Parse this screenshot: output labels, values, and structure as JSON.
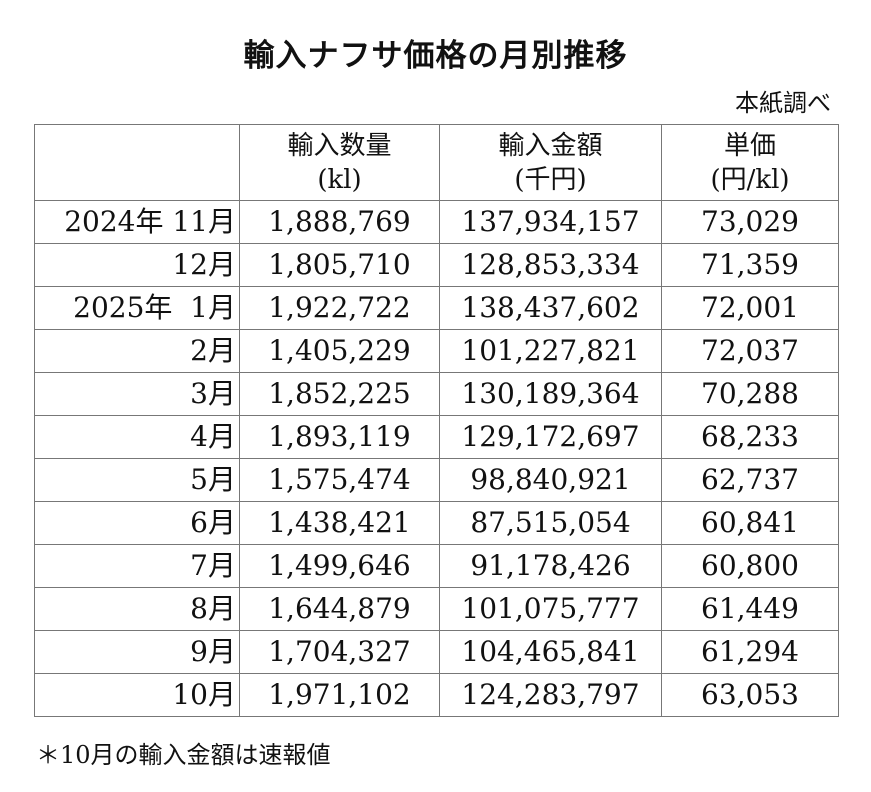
{
  "title": "輸入ナフサ価格の月別推移",
  "source": "本紙調べ",
  "table": {
    "headers": [
      {
        "line1": "",
        "line2": ""
      },
      {
        "line1": "輸入数量",
        "line2": "(kl)"
      },
      {
        "line1": "輸入金額",
        "line2": "(千円)"
      },
      {
        "line1": "単価",
        "line2": "(円/kl)"
      }
    ],
    "rows": [
      {
        "period": "2024年 11月",
        "volume": "1,888,769",
        "amount": "137,934,157",
        "unit_price": "73,029"
      },
      {
        "period": "12月",
        "volume": "1,805,710",
        "amount": "128,853,334",
        "unit_price": "71,359"
      },
      {
        "period": "2025年  1月",
        "volume": "1,922,722",
        "amount": "138,437,602",
        "unit_price": "72,001"
      },
      {
        "period": "2月",
        "volume": "1,405,229",
        "amount": "101,227,821",
        "unit_price": "72,037"
      },
      {
        "period": "3月",
        "volume": "1,852,225",
        "amount": "130,189,364",
        "unit_price": "70,288"
      },
      {
        "period": "4月",
        "volume": "1,893,119",
        "amount": "129,172,697",
        "unit_price": "68,233"
      },
      {
        "period": "5月",
        "volume": "1,575,474",
        "amount": "98,840,921",
        "unit_price": "62,737"
      },
      {
        "period": "6月",
        "volume": "1,438,421",
        "amount": "87,515,054",
        "unit_price": "60,841"
      },
      {
        "period": "7月",
        "volume": "1,499,646",
        "amount": "91,178,426",
        "unit_price": "60,800"
      },
      {
        "period": "8月",
        "volume": "1,644,879",
        "amount": "101,075,777",
        "unit_price": "61,449"
      },
      {
        "period": "9月",
        "volume": "1,704,327",
        "amount": "104,465,841",
        "unit_price": "61,294"
      },
      {
        "period": "10月",
        "volume": "1,971,102",
        "amount": "124,283,797",
        "unit_price": "63,053"
      }
    ]
  },
  "note": "＊10月の輸入金額は速報値"
}
